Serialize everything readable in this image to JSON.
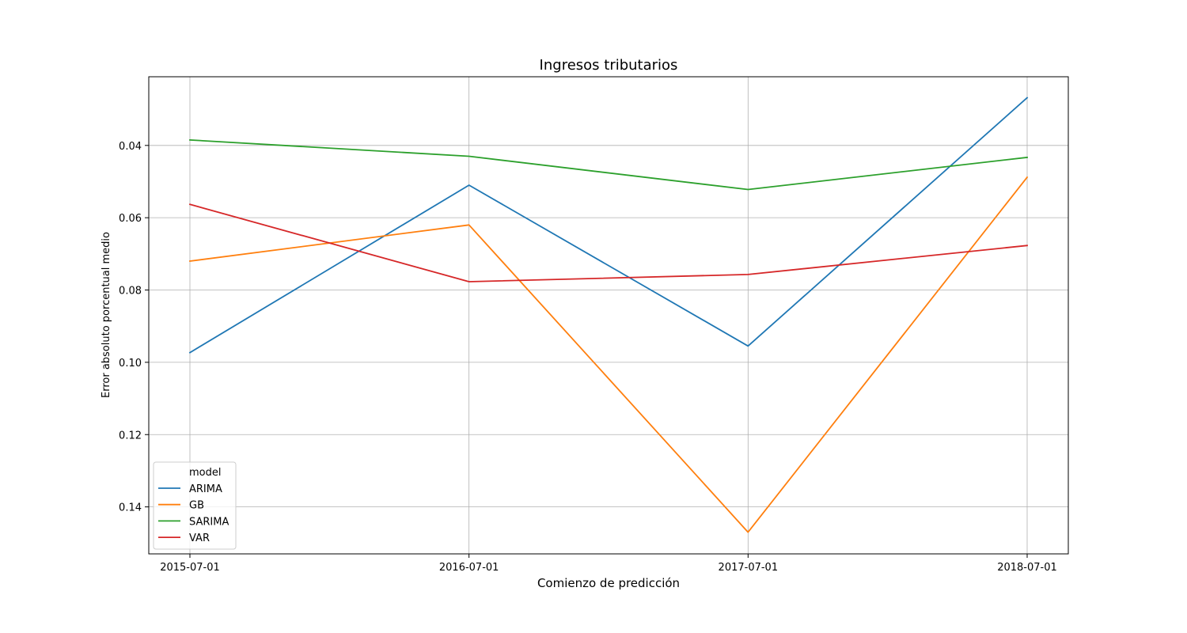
{
  "chart_data": {
    "type": "line",
    "title": "Ingresos tributarios",
    "xlabel": "Comienzo de predicción",
    "ylabel": "Error absoluto porcentual medio",
    "x": [
      "2015-07-01",
      "2016-07-01",
      "2017-07-01",
      "2018-07-01"
    ],
    "yticks": [
      "0.04",
      "0.06",
      "0.08",
      "0.10",
      "0.12",
      "0.14"
    ],
    "ylim": [
      0.021,
      0.153
    ],
    "y_inverted": true,
    "grid": true,
    "legend": {
      "title": "model",
      "position": "bottom-left"
    },
    "series": [
      {
        "name": "ARIMA",
        "color": "#1f77b4",
        "values": [
          0.0973,
          0.051,
          0.0955,
          0.0268
        ]
      },
      {
        "name": "GB",
        "color": "#ff7f0e",
        "values": [
          0.072,
          0.062,
          0.147,
          0.0488
        ]
      },
      {
        "name": "SARIMA",
        "color": "#2ca02c",
        "values": [
          0.0385,
          0.043,
          0.0522,
          0.0433
        ]
      },
      {
        "name": "VAR",
        "color": "#d62728",
        "values": [
          0.0563,
          0.0777,
          0.0757,
          0.0677
        ]
      }
    ]
  }
}
